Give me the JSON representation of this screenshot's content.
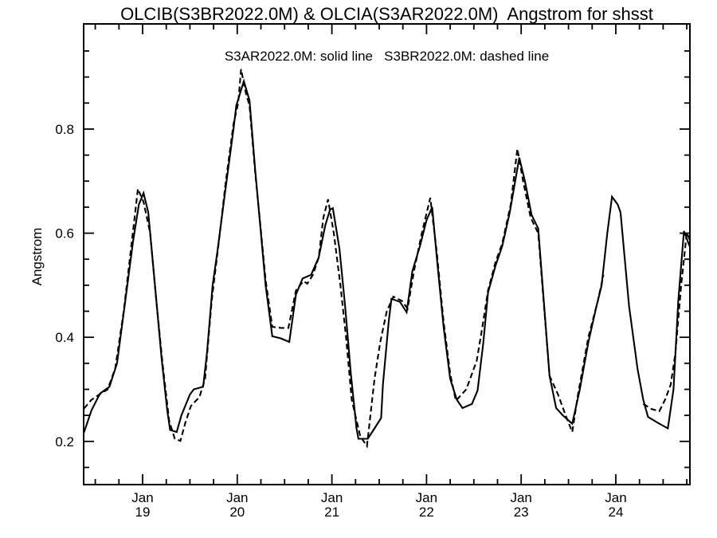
{
  "title": "OLCIB(S3BR2022.0M) & OLCIA(S3AR2022.0M)  Angstrom for shsst",
  "legend": "S3AR2022.0M: solid line   S3BR2022.0M: dashed line",
  "colors": {
    "foreground": "#000000",
    "background": "#ffffff"
  },
  "chart_data": {
    "type": "line",
    "title": "OLCIB(S3BR2022.0M) & OLCIA(S3AR2022.0M)  Angstrom for shsst",
    "subtitle": "S3AR2022.0M: solid line   S3BR2022.0M: dashed line",
    "xlabel": "",
    "ylabel": "Angstrom",
    "x_unit": "day of January 2022",
    "xlim": [
      18.377,
      24.783
    ],
    "ylim": [
      0.117,
      1.002
    ],
    "grid": false,
    "legend_position": "inside-top-center",
    "x_ticks": [
      {
        "value": 19,
        "line1": "Jan",
        "line2": "19"
      },
      {
        "value": 20,
        "line1": "Jan",
        "line2": "20"
      },
      {
        "value": 21,
        "line1": "Jan",
        "line2": "21"
      },
      {
        "value": 22,
        "line1": "Jan",
        "line2": "22"
      },
      {
        "value": 23,
        "line1": "Jan",
        "line2": "23"
      },
      {
        "value": 24,
        "line1": "Jan",
        "line2": "24"
      }
    ],
    "x_minor_step": 0.25,
    "y_ticks": [
      {
        "value": 0.2,
        "label": "0.2"
      },
      {
        "value": 0.4,
        "label": "0.4"
      },
      {
        "value": 0.6,
        "label": "0.6"
      },
      {
        "value": 0.8,
        "label": "0.8"
      }
    ],
    "y_minor_step": 0.05,
    "series": [
      {
        "name": "S3AR2022.0M",
        "instrument": "OLCIA",
        "style": "solid",
        "segments": [
          {
            "x": [
              18.38,
              18.46,
              18.55,
              18.65,
              18.73,
              18.81,
              18.9,
              18.96,
              19.01,
              19.06,
              19.13,
              19.2,
              19.26,
              19.29,
              19.36,
              19.41,
              19.5,
              19.54,
              19.64,
              19.68,
              19.74,
              19.79,
              19.88,
              19.96,
              19.99,
              20.04,
              20.07,
              20.13,
              20.19,
              20.25,
              20.3,
              20.37,
              20.46,
              20.55,
              20.62,
              20.69,
              20.78,
              20.86,
              20.93,
              20.98,
              21.01,
              21.08,
              21.14,
              21.2,
              21.26,
              21.28,
              21.38,
              21.45,
              21.52,
              21.54,
              21.6,
              21.63,
              21.72,
              21.79,
              21.85,
              21.93,
              22.0,
              22.06,
              22.11,
              22.18,
              22.25,
              22.32,
              22.38,
              22.48,
              22.54,
              22.6,
              22.65,
              22.73,
              22.8,
              22.88,
              22.98,
              23.04,
              23.11,
              23.18,
              23.3,
              23.37,
              23.44,
              23.54,
              23.62,
              23.71,
              23.79,
              23.85,
              23.91,
              23.96,
              24.02,
              24.05,
              24.14,
              24.23,
              24.29,
              24.34,
              24.45,
              24.55,
              24.61,
              24.66,
              24.72,
              24.78
            ],
            "y": [
              0.217,
              0.26,
              0.292,
              0.305,
              0.35,
              0.46,
              0.585,
              0.655,
              0.677,
              0.64,
              0.5,
              0.36,
              0.26,
              0.222,
              0.218,
              0.25,
              0.29,
              0.3,
              0.305,
              0.37,
              0.5,
              0.565,
              0.69,
              0.8,
              0.845,
              0.875,
              0.892,
              0.855,
              0.72,
              0.6,
              0.5,
              0.402,
              0.398,
              0.391,
              0.482,
              0.513,
              0.52,
              0.553,
              0.615,
              0.645,
              0.648,
              0.57,
              0.46,
              0.33,
              0.225,
              0.205,
              0.205,
              0.225,
              0.245,
              0.31,
              0.43,
              0.474,
              0.468,
              0.448,
              0.527,
              0.575,
              0.625,
              0.65,
              0.55,
              0.42,
              0.32,
              0.28,
              0.264,
              0.272,
              0.298,
              0.39,
              0.486,
              0.538,
              0.575,
              0.64,
              0.745,
              0.7,
              0.635,
              0.609,
              0.326,
              0.264,
              0.25,
              0.234,
              0.3,
              0.39,
              0.455,
              0.5,
              0.6,
              0.67,
              0.655,
              0.64,
              0.46,
              0.339,
              0.28,
              0.247,
              0.235,
              0.225,
              0.3,
              0.47,
              0.604,
              0.575
            ]
          }
        ]
      },
      {
        "name": "S3BR2022.0M",
        "instrument": "OLCIB",
        "style": "dashed",
        "segments": [
          {
            "x": [
              18.38,
              18.46,
              18.56,
              18.63,
              18.71,
              18.8,
              18.88,
              18.95,
              19.01,
              19.08,
              19.14,
              19.21,
              19.28,
              19.34,
              19.4,
              19.45,
              19.51,
              19.6,
              19.66,
              19.73,
              19.81,
              19.88,
              19.96,
              20.01,
              20.04,
              20.09,
              20.13,
              20.19,
              20.25,
              20.3,
              20.37,
              20.46,
              20.54,
              20.62,
              20.7,
              20.74,
              20.8,
              20.86,
              20.91,
              20.96,
              21.02,
              21.09,
              21.15,
              21.21,
              21.3,
              21.37,
              21.45,
              21.51,
              21.58,
              21.65,
              21.74,
              21.8,
              21.87,
              21.95,
              22.04,
              22.11,
              22.18,
              22.25,
              22.31,
              22.42,
              22.53,
              22.59,
              22.65,
              22.73,
              22.8,
              22.89,
              22.96,
              23.02,
              23.1,
              23.18,
              23.3,
              23.39,
              23.47,
              23.54,
              23.6,
              23.71,
              23.81,
              23.87
            ],
            "y": [
              0.263,
              0.28,
              0.292,
              0.3,
              0.34,
              0.45,
              0.575,
              0.685,
              0.66,
              0.6,
              0.48,
              0.35,
              0.24,
              0.205,
              0.201,
              0.235,
              0.268,
              0.285,
              0.32,
              0.47,
              0.59,
              0.7,
              0.81,
              0.85,
              0.915,
              0.87,
              0.845,
              0.715,
              0.605,
              0.51,
              0.42,
              0.418,
              0.418,
              0.49,
              0.508,
              0.503,
              0.52,
              0.553,
              0.63,
              0.665,
              0.6,
              0.5,
              0.4,
              0.28,
              0.21,
              0.191,
              0.32,
              0.39,
              0.45,
              0.478,
              0.47,
              0.455,
              0.53,
              0.6,
              0.668,
              0.56,
              0.43,
              0.33,
              0.278,
              0.3,
              0.355,
              0.42,
              0.49,
              0.545,
              0.58,
              0.655,
              0.762,
              0.7,
              0.63,
              0.6,
              0.326,
              0.29,
              0.25,
              0.218,
              0.29,
              0.4,
              0.47,
              0.52
            ]
          },
          {
            "x": [
              24.29,
              24.38,
              24.46,
              24.52,
              24.58,
              24.63,
              24.69,
              24.75,
              24.78
            ],
            "y": [
              0.272,
              0.262,
              0.258,
              0.28,
              0.309,
              0.37,
              0.5,
              0.601,
              0.588
            ]
          }
        ]
      }
    ]
  }
}
